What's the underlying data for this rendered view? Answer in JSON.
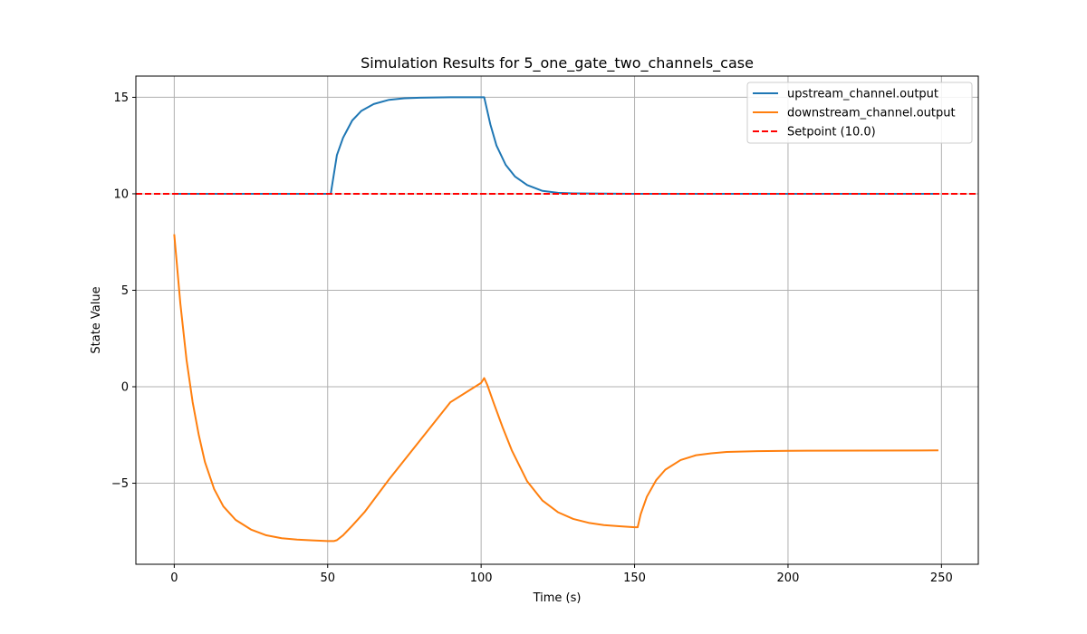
{
  "chart_data": {
    "type": "line",
    "title": "Simulation Results for 5_one_gate_two_channels_case",
    "xlabel": "Time (s)",
    "ylabel": "State Value",
    "xlim": [
      -12.5,
      262
    ],
    "ylim": [
      -9.2,
      16.1
    ],
    "xticks": [
      0,
      50,
      100,
      150,
      200,
      250
    ],
    "yticks": [
      -5,
      0,
      5,
      10,
      15
    ],
    "ytick_labels": [
      "−5",
      "0",
      "5",
      "10",
      "15"
    ],
    "grid": true,
    "legend_position": "top-right",
    "series": [
      {
        "name": "upstream_channel.output",
        "color": "#1f77b4",
        "style": "solid",
        "x": [
          0,
          10,
          20,
          30,
          40,
          50,
          51,
          53,
          55,
          58,
          61,
          65,
          70,
          75,
          80,
          90,
          100,
          101,
          103,
          105,
          108,
          111,
          115,
          120,
          125,
          130,
          150,
          200,
          249
        ],
        "y": [
          10,
          10,
          10,
          10,
          10,
          10,
          10,
          12.0,
          12.9,
          13.8,
          14.3,
          14.65,
          14.87,
          14.95,
          14.98,
          15.0,
          15.0,
          15.0,
          13.6,
          12.5,
          11.5,
          10.9,
          10.45,
          10.15,
          10.05,
          10.02,
          10.0,
          10.0,
          10.0
        ]
      },
      {
        "name": "downstream_channel.output",
        "color": "#ff7f0e",
        "style": "solid",
        "x": [
          0,
          2,
          4,
          6,
          8,
          10,
          13,
          16,
          20,
          25,
          30,
          35,
          40,
          45,
          50,
          52,
          53,
          55,
          58,
          62,
          70,
          80,
          90,
          100,
          101,
          102,
          104,
          107,
          110,
          115,
          120,
          125,
          130,
          135,
          140,
          145,
          150,
          151,
          152,
          154,
          157,
          160,
          165,
          170,
          175,
          180,
          190,
          200,
          225,
          249
        ],
        "y": [
          7.9,
          4.3,
          1.4,
          -0.8,
          -2.5,
          -3.9,
          -5.3,
          -6.2,
          -6.9,
          -7.4,
          -7.7,
          -7.85,
          -7.92,
          -7.96,
          -8.0,
          -8.0,
          -7.95,
          -7.7,
          -7.2,
          -6.5,
          -4.8,
          -2.8,
          -0.8,
          0.2,
          0.45,
          0.1,
          -0.8,
          -2.1,
          -3.3,
          -4.9,
          -5.9,
          -6.5,
          -6.85,
          -7.05,
          -7.17,
          -7.23,
          -7.28,
          -7.28,
          -6.6,
          -5.7,
          -4.85,
          -4.3,
          -3.8,
          -3.55,
          -3.45,
          -3.38,
          -3.34,
          -3.32,
          -3.31,
          -3.3
        ]
      },
      {
        "name": "Setpoint (10.0)",
        "color": "#ff0000",
        "style": "dashed",
        "x": [
          -12.5,
          262
        ],
        "y": [
          10.0,
          10.0
        ]
      }
    ]
  }
}
